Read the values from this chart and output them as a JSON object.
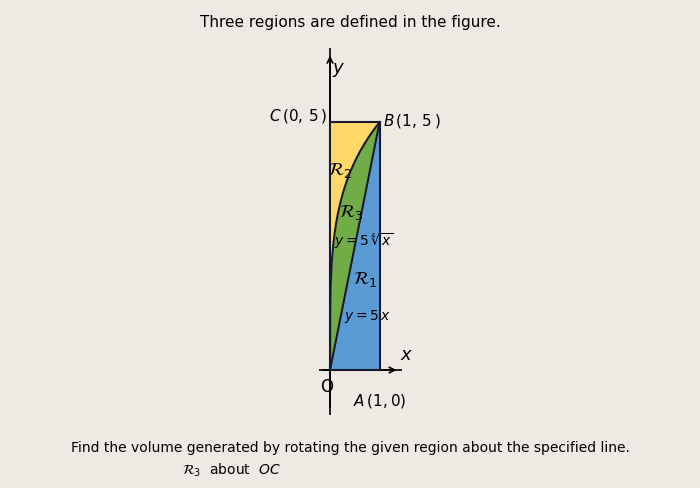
{
  "title": "Three regions are defined in the figure.",
  "subtitle": "Find the volume generated by rotating the given region about the specified line.",
  "color_R1": "#5b9bd5",
  "color_R2": "#ffd966",
  "color_R3": "#70ad47",
  "color_border": "#1a1a2e",
  "background": "#ede9e3",
  "xlim": [
    -0.22,
    1.45
  ],
  "ylim": [
    -0.9,
    6.5
  ],
  "figsize": [
    7.0,
    4.89
  ],
  "dpi": 100
}
